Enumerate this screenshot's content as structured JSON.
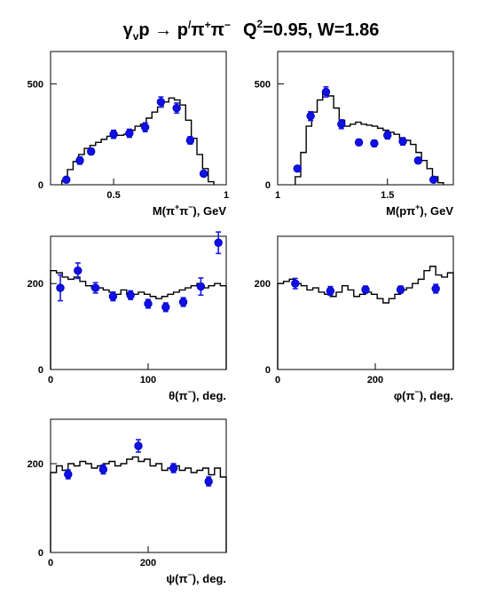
{
  "title_parts": {
    "gamma": "γ",
    "gamma_sub": "v",
    "reaction_1": "p → p",
    "prime": "/",
    "pi_1": "π",
    "pi_1_sup": "+",
    "pi_2": "π",
    "pi_2_sup": "−",
    "q": "Q",
    "q_sup": "2",
    "kinematics": "=0.95, W=1.86"
  },
  "colors": {
    "data_points": "#1010e0",
    "histogram": "#000000",
    "frame": "#000000"
  },
  "chart_data": [
    {
      "type": "line",
      "xlabel_parts": [
        "M(π",
        "+",
        "π",
        "−",
        "), GeV"
      ],
      "xlim": [
        0.22,
        1.0
      ],
      "ylim": [
        0,
        660
      ],
      "xticks": [
        0.5,
        1
      ],
      "xtick_labels": [
        "0.5",
        "1"
      ],
      "yticks": [
        0,
        500
      ],
      "ytick_labels": [
        "0",
        "500"
      ],
      "histogram": {
        "edges": [
          0.27,
          0.295,
          0.32,
          0.345,
          0.37,
          0.395,
          0.42,
          0.445,
          0.47,
          0.495,
          0.52,
          0.545,
          0.57,
          0.595,
          0.62,
          0.645,
          0.67,
          0.695,
          0.72,
          0.745,
          0.77,
          0.795,
          0.82,
          0.845,
          0.87,
          0.895,
          0.92,
          0.945
        ],
        "values": [
          20,
          75,
          115,
          150,
          180,
          195,
          210,
          225,
          240,
          245,
          245,
          250,
          270,
          290,
          300,
          330,
          360,
          385,
          410,
          430,
          420,
          395,
          320,
          230,
          150,
          80,
          15
        ]
      },
      "points": {
        "x": [
          0.29,
          0.35,
          0.4,
          0.5,
          0.57,
          0.64,
          0.71,
          0.78,
          0.84,
          0.9
        ],
        "y": [
          25,
          120,
          165,
          250,
          255,
          285,
          410,
          380,
          220,
          55
        ],
        "err": [
          12,
          18,
          15,
          20,
          20,
          22,
          25,
          25,
          18,
          10
        ]
      }
    },
    {
      "type": "line",
      "xlabel_parts": [
        "M(pπ",
        "+",
        "), GeV"
      ],
      "xlim": [
        1.0,
        1.8
      ],
      "ylim": [
        0,
        660
      ],
      "xticks": [
        1,
        1.5
      ],
      "xtick_labels": [
        "1",
        "1.5"
      ],
      "yticks": [
        0,
        500
      ],
      "ytick_labels": [
        "0",
        "500"
      ],
      "histogram": {
        "edges": [
          1.08,
          1.105,
          1.13,
          1.155,
          1.18,
          1.205,
          1.23,
          1.255,
          1.28,
          1.305,
          1.33,
          1.355,
          1.38,
          1.405,
          1.43,
          1.455,
          1.48,
          1.505,
          1.53,
          1.555,
          1.58,
          1.605,
          1.63,
          1.655,
          1.68,
          1.705,
          1.73,
          1.755
        ],
        "values": [
          40,
          160,
          290,
          360,
          420,
          460,
          440,
          380,
          320,
          290,
          300,
          310,
          300,
          295,
          290,
          280,
          270,
          260,
          250,
          230,
          220,
          200,
          160,
          120,
          80,
          40,
          10
        ]
      },
      "points": {
        "x": [
          1.09,
          1.15,
          1.22,
          1.29,
          1.37,
          1.44,
          1.5,
          1.57,
          1.64,
          1.71
        ],
        "y": [
          80,
          340,
          460,
          300,
          210,
          205,
          245,
          215,
          120,
          25
        ],
        "err": [
          12,
          22,
          25,
          22,
          15,
          15,
          18,
          18,
          14,
          10
        ]
      }
    },
    {
      "type": "line",
      "xlabel_parts": [
        "θ(π",
        "−",
        "), deg."
      ],
      "xlim": [
        0,
        180
      ],
      "ylim": [
        0,
        310
      ],
      "xticks": [
        0,
        100
      ],
      "xtick_labels": [
        "0",
        "100"
      ],
      "yticks": [
        0,
        200
      ],
      "ytick_labels": [
        "0",
        "200"
      ],
      "histogram": {
        "edges": [
          0,
          6,
          12,
          18,
          24,
          30,
          36,
          42,
          48,
          54,
          60,
          66,
          72,
          78,
          84,
          90,
          96,
          102,
          108,
          114,
          120,
          126,
          132,
          138,
          144,
          150,
          156,
          162,
          168,
          174,
          180
        ],
        "values": [
          230,
          225,
          215,
          210,
          215,
          205,
          195,
          190,
          190,
          185,
          180,
          175,
          185,
          175,
          175,
          180,
          175,
          170,
          165,
          170,
          175,
          180,
          185,
          190,
          195,
          200,
          190,
          195,
          200,
          195
        ]
      },
      "points": {
        "x": [
          10,
          28,
          46,
          64,
          82,
          100,
          118,
          136,
          154,
          172
        ],
        "y": [
          190,
          230,
          190,
          170,
          173,
          153,
          145,
          157,
          193,
          295
        ],
        "err": [
          30,
          18,
          12,
          10,
          10,
          10,
          10,
          10,
          20,
          25
        ]
      }
    },
    {
      "type": "line",
      "xlabel_parts": [
        "φ(π",
        "−",
        "), deg."
      ],
      "xlim": [
        0,
        360
      ],
      "ylim": [
        0,
        310
      ],
      "xticks": [
        0,
        200
      ],
      "xtick_labels": [
        "0",
        "200"
      ],
      "yticks": [
        0,
        200
      ],
      "ytick_labels": [
        "0",
        "200"
      ],
      "histogram": {
        "edges": [
          0,
          12,
          24,
          36,
          48,
          60,
          72,
          84,
          96,
          108,
          120,
          132,
          144,
          156,
          168,
          180,
          192,
          204,
          216,
          228,
          240,
          252,
          264,
          276,
          288,
          300,
          312,
          324,
          336,
          348,
          360
        ],
        "values": [
          200,
          205,
          210,
          200,
          195,
          185,
          190,
          180,
          175,
          170,
          180,
          195,
          185,
          170,
          175,
          180,
          175,
          165,
          155,
          165,
          175,
          185,
          190,
          200,
          210,
          230,
          240,
          220,
          215,
          225
        ]
      },
      "points": {
        "x": [
          36,
          108,
          180,
          252,
          324
        ],
        "y": [
          200,
          183,
          186,
          186,
          188
        ],
        "err": [
          12,
          10,
          8,
          8,
          10
        ]
      }
    },
    {
      "type": "line",
      "xlabel_parts": [
        "ψ(π",
        "−",
        "), deg."
      ],
      "xlim": [
        0,
        360
      ],
      "ylim": [
        0,
        300
      ],
      "xticks": [
        0,
        200
      ],
      "xtick_labels": [
        "0",
        "200"
      ],
      "yticks": [
        0,
        200
      ],
      "ytick_labels": [
        "0",
        "200"
      ],
      "histogram": {
        "edges": [
          0,
          12,
          24,
          36,
          48,
          60,
          72,
          84,
          96,
          108,
          120,
          132,
          144,
          156,
          168,
          180,
          192,
          204,
          216,
          228,
          240,
          252,
          264,
          276,
          288,
          300,
          312,
          324,
          336,
          348,
          360
        ],
        "values": [
          180,
          195,
          185,
          200,
          195,
          205,
          200,
          190,
          195,
          200,
          205,
          195,
          200,
          210,
          215,
          205,
          210,
          195,
          200,
          185,
          190,
          195,
          185,
          190,
          180,
          185,
          190,
          175,
          190,
          170
        ]
      },
      "points": {
        "x": [
          36,
          108,
          180,
          252,
          324
        ],
        "y": [
          176,
          187,
          240,
          190,
          160
        ],
        "err": [
          10,
          10,
          14,
          10,
          10
        ]
      }
    }
  ]
}
